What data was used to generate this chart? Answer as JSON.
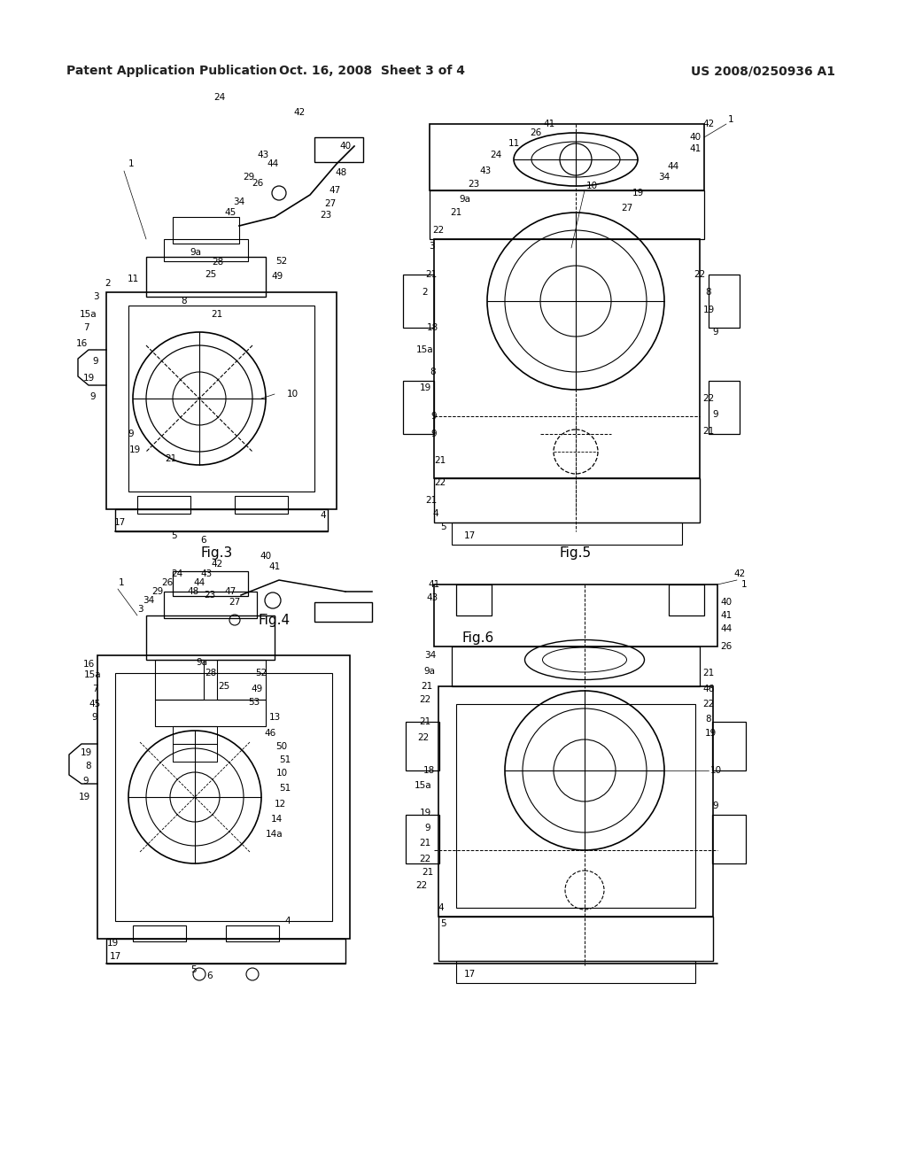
{
  "background_color": "#ffffff",
  "header_left": "Patent Application Publication",
  "header_center": "Oct. 16, 2008  Sheet 3 of 4",
  "header_right": "US 2008/0250936 A1",
  "fig_labels": [
    "Fig.3",
    "Fig.4",
    "Fig.5",
    "Fig.6"
  ],
  "title_fontsize": 10,
  "label_fontsize": 7.5,
  "fig_label_fontsize": 11
}
